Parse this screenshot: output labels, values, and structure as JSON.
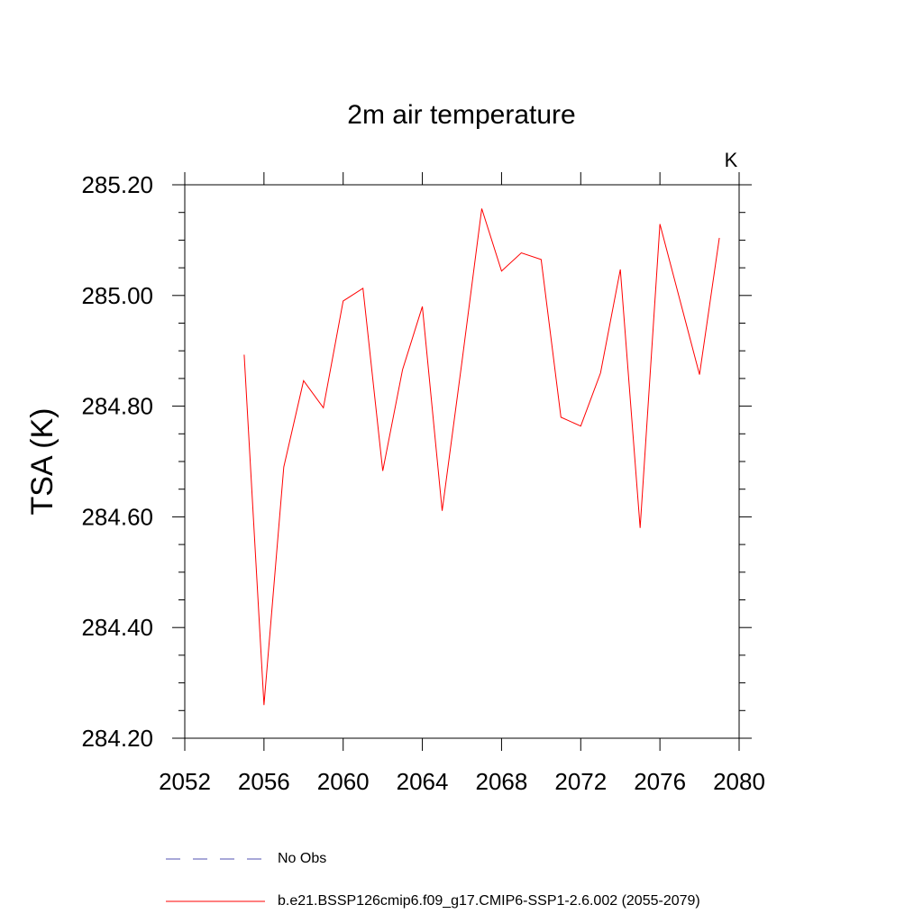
{
  "chart_data": {
    "type": "line",
    "title": "2m air temperature",
    "units_label": "K",
    "xlabel": "",
    "ylabel": "TSA  (K)",
    "xlim": [
      2052,
      2080
    ],
    "ylim": [
      284.2,
      285.2
    ],
    "x_ticks": [
      2052,
      2056,
      2060,
      2064,
      2068,
      2072,
      2076,
      2080
    ],
    "x_tick_labels": [
      "2052",
      "2056",
      "2060",
      "2064",
      "2068",
      "2072",
      "2076",
      "2080"
    ],
    "y_ticks": [
      284.2,
      284.4,
      284.6,
      284.8,
      285.0,
      285.2
    ],
    "y_tick_labels": [
      "284.20",
      "284.40",
      "284.60",
      "284.80",
      "285.00",
      "285.20"
    ],
    "series": [
      {
        "name": "b.e21.BSSP126cmip6.f09_g17.CMIP6-SSP1-2.6.002 (2055-2079)",
        "color": "#ff0000",
        "style": "solid",
        "x": [
          2055,
          2056,
          2057,
          2058,
          2059,
          2060,
          2061,
          2062,
          2063,
          2064,
          2065,
          2066,
          2067,
          2068,
          2069,
          2070,
          2071,
          2072,
          2073,
          2074,
          2075,
          2076,
          2077,
          2078,
          2079
        ],
        "values": [
          284.893,
          284.26,
          284.69,
          284.846,
          284.797,
          284.99,
          285.013,
          284.683,
          284.866,
          284.98,
          284.611,
          284.88,
          285.157,
          285.044,
          285.077,
          285.065,
          284.78,
          284.764,
          284.86,
          285.047,
          284.58,
          285.129,
          284.993,
          284.857,
          285.104
        ]
      }
    ],
    "legend": [
      {
        "label": "No Obs",
        "color": "#5050b0",
        "style": "dashed"
      },
      {
        "label": "b.e21.BSSP126cmip6.f09_g17.CMIP6-SSP1-2.6.002 (2055-2079)",
        "color": "#ff0000",
        "style": "solid"
      }
    ],
    "legend_position": "bottom"
  }
}
